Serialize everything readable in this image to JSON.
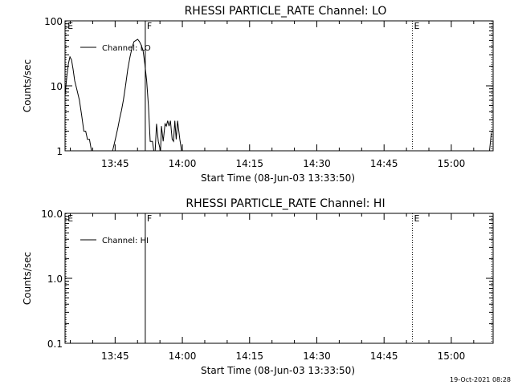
{
  "chart_data": [
    {
      "type": "line",
      "title": "RHESSI PARTICLE_RATE Channel: LO",
      "xlabel": "Start Time (08-Jun-03 13:33:50)",
      "ylabel": "Counts/sec",
      "yscale": "log",
      "ylim": [
        1,
        100
      ],
      "ytick_labels": [
        "1",
        "10",
        "100"
      ],
      "xlim_minutes_after_start": [
        0,
        95.5
      ],
      "xtick_labels": [
        "13:45",
        "14:00",
        "14:15",
        "14:30",
        "14:45",
        "15:00"
      ],
      "xtick_minutes_after_start": [
        11.17,
        26.17,
        41.17,
        56.17,
        71.17,
        86.17
      ],
      "legend": "top-left",
      "series": [
        {
          "name": "Channel: LO",
          "x": [
            0.0,
            0.4,
            0.75,
            1.1,
            1.45,
            1.8,
            2.15,
            2.6,
            3.2,
            3.7,
            4.2,
            4.6,
            5.0,
            5.45,
            5.9,
            6.3,
            6.7,
            7.1,
            10.0,
            10.6,
            11.0,
            11.4,
            11.8,
            12.2,
            12.6,
            13.0,
            13.5,
            14.0,
            14.5,
            15.0,
            15.4,
            15.8,
            16.2,
            16.6,
            17.0,
            17.4,
            17.8,
            18.2,
            18.6,
            19.0,
            19.5,
            19.8,
            20.1,
            20.4,
            20.8,
            21.3,
            21.5,
            21.9,
            22.3,
            22.6,
            22.9,
            23.2,
            23.5,
            23.9,
            24.2,
            24.5,
            24.8,
            25.1,
            25.6,
            26.0
          ],
          "y": [
            7,
            14,
            22,
            28,
            25,
            18,
            12,
            9,
            6,
            3.5,
            2,
            2,
            1.5,
            1.5,
            1.0,
            1.0,
            1.0,
            0.7,
            0.7,
            1.0,
            1.3,
            1.7,
            2.3,
            3.2,
            4.2,
            6,
            10,
            18,
            28,
            40,
            48,
            50,
            52,
            48,
            42,
            35,
            22,
            12,
            5,
            1.4,
            1.4,
            1.0,
            1.0,
            2.6,
            1.4,
            1.0,
            2.4,
            1.4,
            2.6,
            2.4,
            2.9,
            2.4,
            2.9,
            1.5,
            1.4,
            2.9,
            1.5,
            2.9,
            1.5,
            1.0
          ]
        }
      ],
      "markers": [
        {
          "label": "E",
          "x": 0.2,
          "style": "dotted"
        },
        {
          "label": "F",
          "x": 17.9,
          "style": "solid"
        },
        {
          "label": "E",
          "x": 77.5,
          "style": "dotted"
        },
        {
          "label": "",
          "x": 95.2,
          "style": "dotted"
        }
      ],
      "tail_segment": {
        "x": [
          94.7,
          95.1
        ],
        "y": [
          1.0,
          1.9
        ]
      }
    },
    {
      "type": "line",
      "title": "RHESSI PARTICLE_RATE Channel: HI",
      "xlabel": "Start Time (08-Jun-03 13:33:50)",
      "ylabel": "Counts/sec",
      "yscale": "log",
      "ylim": [
        0.1,
        10
      ],
      "ytick_labels": [
        "0.1",
        "1.0",
        "10.0"
      ],
      "xlim_minutes_after_start": [
        0,
        95.5
      ],
      "xtick_labels": [
        "13:45",
        "14:00",
        "14:15",
        "14:30",
        "14:45",
        "15:00"
      ],
      "xtick_minutes_after_start": [
        11.17,
        26.17,
        41.17,
        56.17,
        71.17,
        86.17
      ],
      "legend": "top-left",
      "series": [
        {
          "name": "Channel: HI",
          "x": [],
          "y": []
        }
      ],
      "markers": [
        {
          "label": "E",
          "x": 0.2,
          "style": "dotted"
        },
        {
          "label": "F",
          "x": 17.9,
          "style": "solid"
        },
        {
          "label": "E",
          "x": 77.5,
          "style": "dotted"
        },
        {
          "label": "",
          "x": 95.2,
          "style": "dotted"
        }
      ]
    }
  ],
  "footer": {
    "timestamp": "19-Oct-2021 08:28"
  }
}
